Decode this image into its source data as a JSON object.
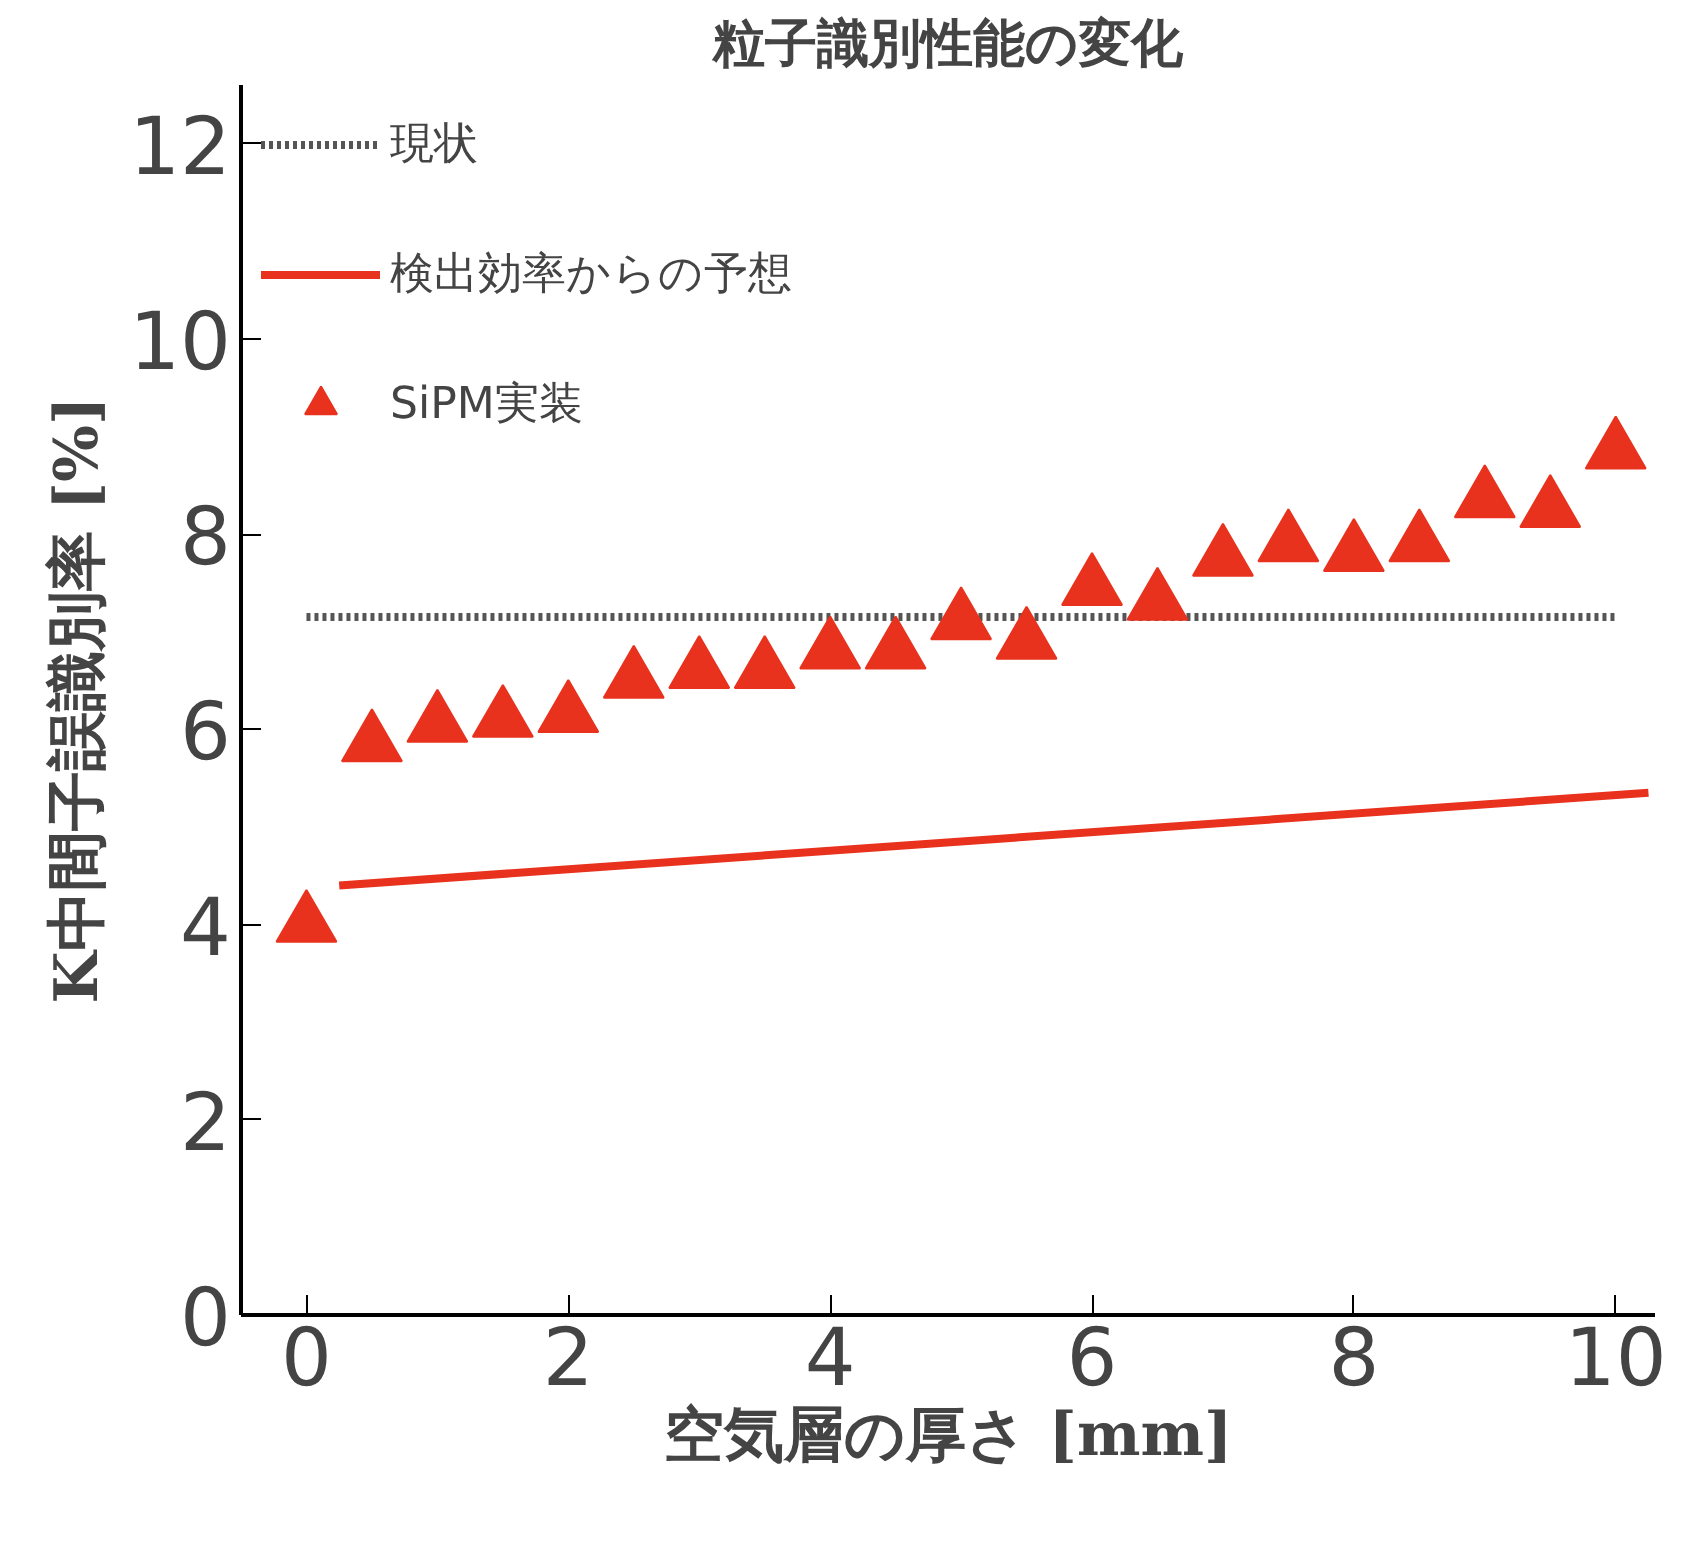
{
  "chart_data": {
    "type": "scatter",
    "title": "粒子識別性能の変化",
    "xlabel": "空気層の厚さ [mm]",
    "ylabel": "K中間子誤識別率 [%]",
    "xlim": [
      -0.5,
      10.3
    ],
    "ylim": [
      0,
      12.6
    ],
    "xticks": [
      0,
      2,
      4,
      6,
      8,
      10
    ],
    "yticks": [
      0,
      2,
      4,
      6,
      8,
      10,
      12
    ],
    "grid": false,
    "legend": "top left",
    "series": [
      {
        "name": "現状",
        "type": "line",
        "line_style": "dotted",
        "color": "#555555",
        "x": [
          0,
          10
        ],
        "values": [
          7.15,
          7.15
        ]
      },
      {
        "name": "検出効率からの予想",
        "type": "line",
        "line_style": "solid",
        "color": "#e8321e",
        "x": [
          0.25,
          10.25
        ],
        "values": [
          4.4,
          5.35
        ]
      },
      {
        "name": "SiPM実装",
        "marker": "triangle",
        "color": "#e8321e",
        "x": [
          0,
          0.5,
          1,
          1.5,
          2,
          2.5,
          3,
          3.5,
          4,
          4.5,
          5,
          5.5,
          6,
          6.5,
          7,
          7.5,
          8,
          8.5,
          9,
          9.5,
          10
        ],
        "values": [
          4.0,
          5.85,
          6.05,
          6.1,
          6.15,
          6.5,
          6.6,
          6.6,
          6.8,
          6.8,
          7.1,
          6.9,
          7.45,
          7.3,
          7.75,
          7.9,
          7.8,
          7.9,
          8.35,
          8.25,
          8.85
        ]
      }
    ]
  }
}
